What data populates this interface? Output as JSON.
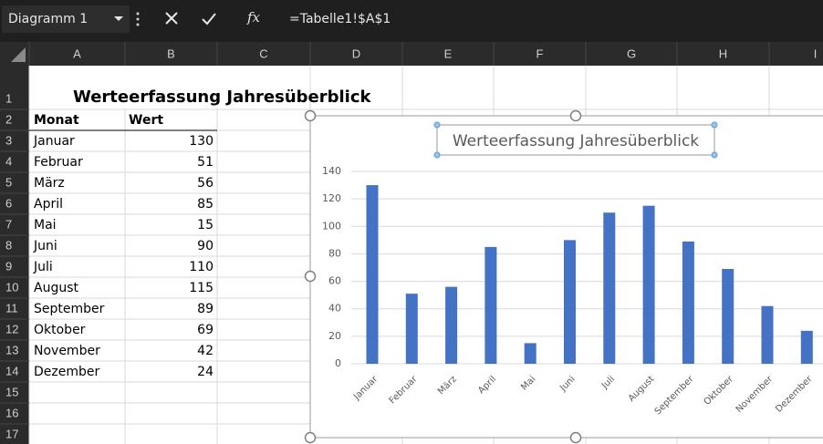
{
  "formula_bar": {
    "name_box": "Diagramm 1",
    "fx": "fx",
    "formula": "=Tabelle1!$A$1"
  },
  "columns": [
    "A",
    "B",
    "C",
    "D",
    "E",
    "F",
    "G",
    "H",
    "I"
  ],
  "rows": [
    "1",
    "2",
    "3",
    "4",
    "5",
    "6",
    "7",
    "8",
    "9",
    "10",
    "11",
    "12",
    "13",
    "14",
    "15",
    "16",
    "17"
  ],
  "sheet": {
    "title": "Werteerfassung Jahresüberblick",
    "header": [
      "Monat",
      "Wert"
    ],
    "rows": [
      [
        "Januar",
        130
      ],
      [
        "Februar",
        51
      ],
      [
        "März",
        56
      ],
      [
        "April",
        85
      ],
      [
        "Mai",
        15
      ],
      [
        "Juni",
        90
      ],
      [
        "Juli",
        110
      ],
      [
        "August",
        115
      ],
      [
        "September",
        89
      ],
      [
        "Oktober",
        69
      ],
      [
        "November",
        42
      ],
      [
        "Dezember",
        24
      ]
    ]
  },
  "chart": {
    "type": "bar",
    "title": "Werteerfassung Jahresüberblick",
    "color": "#4472c4",
    "grid": true,
    "ylim": [
      0,
      140
    ],
    "yticks": [
      0,
      20,
      40,
      60,
      80,
      100,
      120,
      140
    ]
  }
}
